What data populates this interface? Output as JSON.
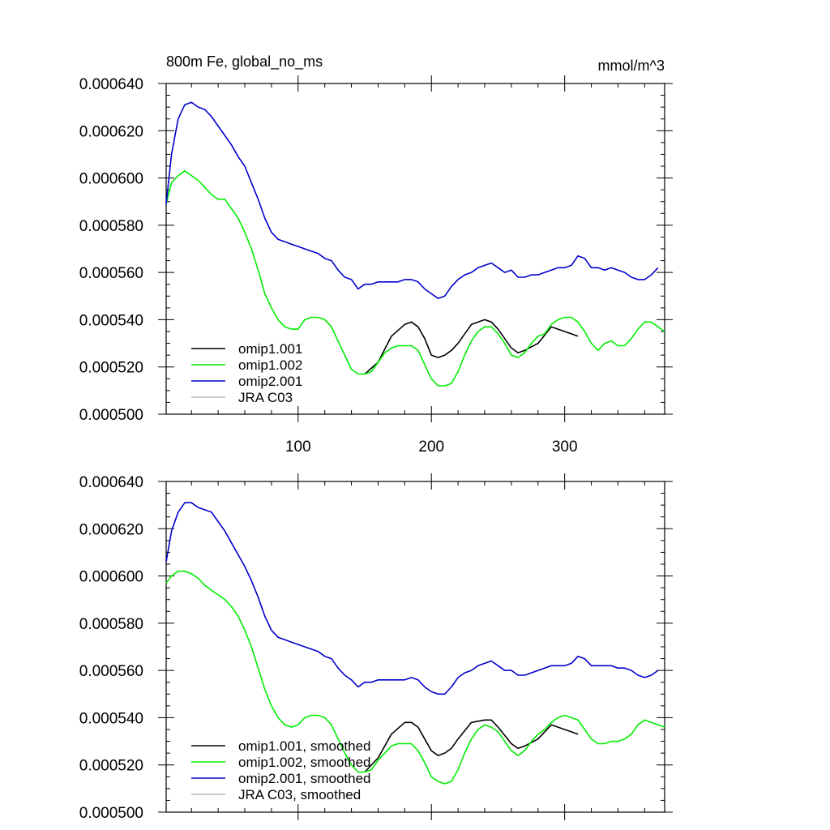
{
  "colors": {
    "omip1_001": "#000000",
    "omip1_002": "#00ee00",
    "omip2_001": "#0000cc",
    "jra_c03": "#bbbbbb",
    "axis": "#000000"
  },
  "chart_data": [
    {
      "type": "line",
      "title": "800m Fe, global_no_ms",
      "units": "mmol/m^3",
      "xlabel": "",
      "ylabel": "",
      "xlim": [
        1,
        375
      ],
      "ylim": [
        0.0005,
        0.00064
      ],
      "xtick_values": [
        100,
        200,
        300
      ],
      "xtick_labels": [
        "100",
        "200",
        "300"
      ],
      "ytick_values": [
        0.0005,
        0.00052,
        0.00054,
        0.00056,
        0.00058,
        0.0006,
        0.00062,
        0.00064
      ],
      "ytick_labels": [
        "0.000500",
        "0.000520",
        "0.000540",
        "0.000560",
        "0.000580",
        "0.000600",
        "0.000620",
        "0.000640"
      ],
      "legend_position": "bottom-left",
      "series": [
        {
          "name": "omip1.001",
          "color_key": "omip1_001",
          "x": [
            150,
            160,
            170,
            180,
            185,
            190,
            195,
            200,
            205,
            210,
            215,
            220,
            230,
            240,
            245,
            250,
            260,
            265,
            270,
            280,
            290,
            300,
            310
          ],
          "y": [
            0.000517,
            0.000522,
            0.000533,
            0.000538,
            0.000539,
            0.000537,
            0.000532,
            0.000525,
            0.000524,
            0.000525,
            0.000527,
            0.00053,
            0.000538,
            0.00054,
            0.000539,
            0.000536,
            0.000528,
            0.000526,
            0.000527,
            0.00053,
            0.000537,
            0.000535,
            0.000533
          ]
        },
        {
          "name": "omip1.002",
          "color_key": "omip1_002",
          "x": [
            1,
            5,
            10,
            15,
            20,
            25,
            30,
            35,
            40,
            45,
            50,
            55,
            60,
            65,
            70,
            75,
            80,
            85,
            90,
            95,
            100,
            105,
            110,
            115,
            120,
            125,
            130,
            135,
            140,
            145,
            150,
            155,
            160,
            165,
            170,
            175,
            180,
            185,
            190,
            195,
            200,
            205,
            210,
            215,
            220,
            225,
            230,
            235,
            240,
            245,
            250,
            255,
            260,
            265,
            270,
            275,
            280,
            285,
            290,
            295,
            300,
            305,
            310,
            315,
            320,
            325,
            330,
            335,
            340,
            345,
            350,
            355,
            360,
            365,
            370,
            375
          ],
          "y": [
            0.000589,
            0.000598,
            0.000601,
            0.000603,
            0.000601,
            0.000599,
            0.000596,
            0.000593,
            0.000591,
            0.000591,
            0.000587,
            0.000583,
            0.000577,
            0.00057,
            0.000561,
            0.000551,
            0.000545,
            0.00054,
            0.000537,
            0.000536,
            0.000536,
            0.00054,
            0.000541,
            0.000541,
            0.00054,
            0.000537,
            0.000531,
            0.000525,
            0.000519,
            0.000517,
            0.000517,
            0.000518,
            0.000522,
            0.000526,
            0.000528,
            0.000529,
            0.000529,
            0.000529,
            0.000527,
            0.000521,
            0.000515,
            0.000512,
            0.000512,
            0.000513,
            0.000518,
            0.000525,
            0.000531,
            0.000535,
            0.000537,
            0.000537,
            0.000534,
            0.00053,
            0.000525,
            0.000524,
            0.000526,
            0.00053,
            0.000533,
            0.000534,
            0.000538,
            0.00054,
            0.000541,
            0.000541,
            0.000539,
            0.000535,
            0.00053,
            0.000527,
            0.00053,
            0.000531,
            0.000529,
            0.000529,
            0.000532,
            0.000536,
            0.000539,
            0.000539,
            0.000537,
            0.000535
          ]
        },
        {
          "name": "omip2.001",
          "color_key": "omip2_001",
          "x": [
            1,
            5,
            10,
            15,
            20,
            25,
            30,
            35,
            40,
            45,
            50,
            55,
            60,
            65,
            70,
            75,
            80,
            85,
            90,
            95,
            100,
            105,
            110,
            115,
            120,
            125,
            130,
            135,
            140,
            145,
            150,
            155,
            160,
            165,
            170,
            175,
            180,
            185,
            190,
            195,
            200,
            205,
            210,
            215,
            220,
            225,
            230,
            235,
            240,
            245,
            250,
            255,
            260,
            265,
            270,
            275,
            280,
            285,
            290,
            295,
            300,
            305,
            310,
            315,
            320,
            325,
            330,
            335,
            340,
            345,
            350,
            355,
            360,
            365,
            370
          ],
          "y": [
            0.000589,
            0.00061,
            0.000625,
            0.000631,
            0.000632,
            0.00063,
            0.000629,
            0.000626,
            0.000622,
            0.000618,
            0.000614,
            0.000609,
            0.000605,
            0.000598,
            0.000591,
            0.000583,
            0.000577,
            0.000574,
            0.000573,
            0.000572,
            0.000571,
            0.00057,
            0.000569,
            0.000568,
            0.000566,
            0.000565,
            0.000561,
            0.000558,
            0.000557,
            0.000553,
            0.000555,
            0.000555,
            0.000556,
            0.000556,
            0.000556,
            0.000556,
            0.000557,
            0.000557,
            0.000556,
            0.000553,
            0.000551,
            0.000549,
            0.00055,
            0.000554,
            0.000557,
            0.000559,
            0.00056,
            0.000562,
            0.000563,
            0.000564,
            0.000562,
            0.00056,
            0.000561,
            0.000558,
            0.000558,
            0.000559,
            0.000559,
            0.00056,
            0.000561,
            0.000562,
            0.000562,
            0.000563,
            0.000567,
            0.000566,
            0.000562,
            0.000562,
            0.000561,
            0.000562,
            0.000561,
            0.00056,
            0.000558,
            0.000557,
            0.000557,
            0.000559,
            0.000562
          ]
        },
        {
          "name": "JRA C03",
          "color_key": "jra_c03",
          "x": [],
          "y": []
        }
      ]
    },
    {
      "type": "line",
      "title": "",
      "units": "",
      "xlabel": "",
      "ylabel": "",
      "xlim": [
        1,
        375
      ],
      "ylim": [
        0.0005,
        0.00064
      ],
      "xtick_values": [
        100,
        200,
        300
      ],
      "xtick_labels": [],
      "ytick_values": [
        0.0005,
        0.00052,
        0.00054,
        0.00056,
        0.00058,
        0.0006,
        0.00062,
        0.00064
      ],
      "ytick_labels": [
        "0.000500",
        "0.000520",
        "0.000540",
        "0.000560",
        "0.000580",
        "0.000600",
        "0.000620",
        "0.000640"
      ],
      "legend_position": "bottom-left",
      "series": [
        {
          "name": "omip1.001, smoothed",
          "color_key": "omip1_001",
          "x": [
            150,
            160,
            170,
            180,
            185,
            190,
            195,
            200,
            205,
            210,
            215,
            220,
            230,
            240,
            245,
            250,
            260,
            265,
            270,
            280,
            290,
            300,
            310
          ],
          "y": [
            0.000517,
            0.000523,
            0.000533,
            0.000538,
            0.000538,
            0.000536,
            0.000531,
            0.000526,
            0.000524,
            0.000525,
            0.000527,
            0.000531,
            0.000538,
            0.000539,
            0.000539,
            0.000536,
            0.000529,
            0.000527,
            0.000528,
            0.000531,
            0.000537,
            0.000535,
            0.000533
          ]
        },
        {
          "name": "omip1.002, smoothed",
          "color_key": "omip1_002",
          "x": [
            1,
            5,
            10,
            15,
            20,
            25,
            30,
            35,
            40,
            45,
            50,
            55,
            60,
            65,
            70,
            75,
            80,
            85,
            90,
            95,
            100,
            105,
            110,
            115,
            120,
            125,
            130,
            135,
            140,
            145,
            150,
            155,
            160,
            165,
            170,
            175,
            180,
            185,
            190,
            195,
            200,
            205,
            210,
            215,
            220,
            225,
            230,
            235,
            240,
            245,
            250,
            255,
            260,
            265,
            270,
            275,
            280,
            285,
            290,
            295,
            300,
            305,
            310,
            315,
            320,
            325,
            330,
            335,
            340,
            345,
            350,
            355,
            360,
            365,
            370,
            375
          ],
          "y": [
            0.000597,
            0.0006,
            0.000602,
            0.000602,
            0.000601,
            0.000599,
            0.000596,
            0.000594,
            0.000592,
            0.00059,
            0.000587,
            0.000583,
            0.000577,
            0.00057,
            0.000561,
            0.000552,
            0.000545,
            0.00054,
            0.000537,
            0.000536,
            0.000537,
            0.00054,
            0.000541,
            0.000541,
            0.00054,
            0.000537,
            0.000531,
            0.000525,
            0.00052,
            0.000517,
            0.000517,
            0.000518,
            0.000522,
            0.000525,
            0.000528,
            0.000529,
            0.000529,
            0.000529,
            0.000526,
            0.000521,
            0.000515,
            0.000513,
            0.000512,
            0.000513,
            0.000518,
            0.000525,
            0.000531,
            0.000535,
            0.000537,
            0.000536,
            0.000534,
            0.00053,
            0.000526,
            0.000524,
            0.000526,
            0.00053,
            0.000533,
            0.000535,
            0.000538,
            0.00054,
            0.000541,
            0.00054,
            0.000539,
            0.000535,
            0.000531,
            0.000529,
            0.000529,
            0.00053,
            0.00053,
            0.000531,
            0.000533,
            0.000537,
            0.000539,
            0.000538,
            0.000537,
            0.000536
          ]
        },
        {
          "name": "omip2.001, smoothed",
          "color_key": "omip2_001",
          "x": [
            1,
            5,
            10,
            15,
            20,
            25,
            30,
            35,
            40,
            45,
            50,
            55,
            60,
            65,
            70,
            75,
            80,
            85,
            90,
            95,
            100,
            105,
            110,
            115,
            120,
            125,
            130,
            135,
            140,
            145,
            150,
            155,
            160,
            165,
            170,
            175,
            180,
            185,
            190,
            195,
            200,
            205,
            210,
            215,
            220,
            225,
            230,
            235,
            240,
            245,
            250,
            255,
            260,
            265,
            270,
            275,
            280,
            285,
            290,
            295,
            300,
            305,
            310,
            315,
            320,
            325,
            330,
            335,
            340,
            345,
            350,
            355,
            360,
            365,
            370
          ],
          "y": [
            0.000606,
            0.000619,
            0.000627,
            0.000631,
            0.000631,
            0.000629,
            0.000628,
            0.000627,
            0.000623,
            0.000619,
            0.000614,
            0.000609,
            0.000604,
            0.000598,
            0.000591,
            0.000583,
            0.000577,
            0.000574,
            0.000573,
            0.000572,
            0.000571,
            0.00057,
            0.000569,
            0.000568,
            0.000566,
            0.000565,
            0.000561,
            0.000558,
            0.000556,
            0.000553,
            0.000555,
            0.000555,
            0.000556,
            0.000556,
            0.000556,
            0.000556,
            0.000556,
            0.000557,
            0.000556,
            0.000553,
            0.000551,
            0.00055,
            0.00055,
            0.000553,
            0.000557,
            0.000559,
            0.00056,
            0.000562,
            0.000563,
            0.000564,
            0.000562,
            0.00056,
            0.00056,
            0.000558,
            0.000558,
            0.000559,
            0.00056,
            0.000561,
            0.000562,
            0.000562,
            0.000562,
            0.000563,
            0.000566,
            0.000565,
            0.000562,
            0.000562,
            0.000562,
            0.000562,
            0.000561,
            0.000561,
            0.00056,
            0.000558,
            0.000557,
            0.000558,
            0.00056
          ]
        },
        {
          "name": "JRA C03, smoothed",
          "color_key": "jra_c03",
          "x": [],
          "y": []
        }
      ]
    }
  ]
}
